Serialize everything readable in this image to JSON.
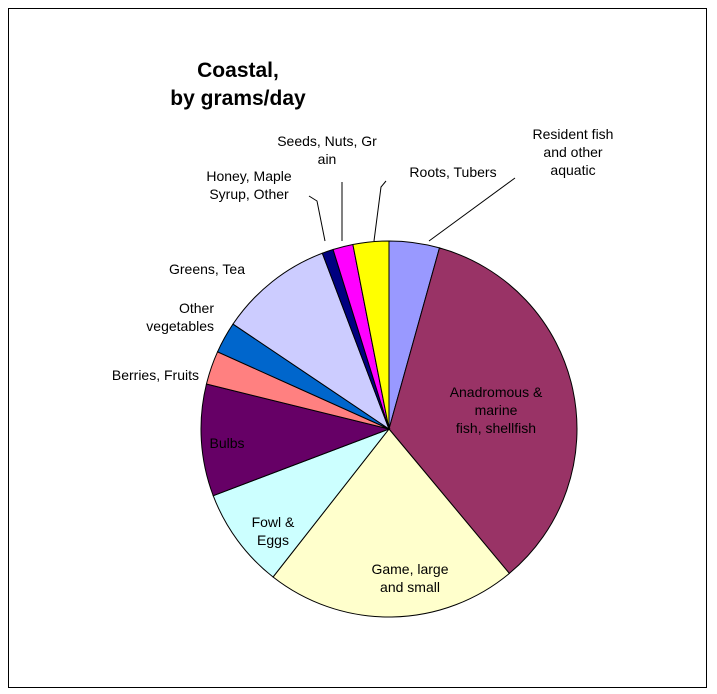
{
  "chart_data": {
    "type": "pie",
    "title": [
      "Coastal,",
      "by grams/day"
    ],
    "unit": "grams/day",
    "slices": [
      {
        "label": [
          "Resident fish",
          "and other",
          "aquatic"
        ],
        "value": 4.5,
        "color": "#9999ff"
      },
      {
        "label": [
          "Anadromous &",
          "marine",
          "fish, shellfish"
        ],
        "value": 36,
        "color": "#993366"
      },
      {
        "label": [
          "Game, large",
          "and small"
        ],
        "value": 22.5,
        "color": "#ffffcc"
      },
      {
        "label": [
          "Fowl &",
          "Eggs"
        ],
        "value": 9,
        "color": "#ccffff"
      },
      {
        "label": [
          "Bulbs"
        ],
        "value": 10,
        "color": "#660066"
      },
      {
        "label": [
          "Berries, Fruits"
        ],
        "value": 3,
        "color": "#ff8080"
      },
      {
        "label": [
          "Other",
          "vegetables"
        ],
        "value": 2.8,
        "color": "#0066cc"
      },
      {
        "label": [
          "Greens, Tea"
        ],
        "value": 10.2,
        "color": "#ccccff"
      },
      {
        "label": [
          "Honey, Maple",
          "Syrup, Other"
        ],
        "value": 1,
        "color": "#000080"
      },
      {
        "label": [
          "Seeds, Nuts, Gr",
          "ain"
        ],
        "value": 1.8,
        "color": "#ff00ff"
      },
      {
        "label": [
          "Roots, Tubers"
        ],
        "value": 3.2,
        "color": "#ffff00"
      }
    ]
  }
}
